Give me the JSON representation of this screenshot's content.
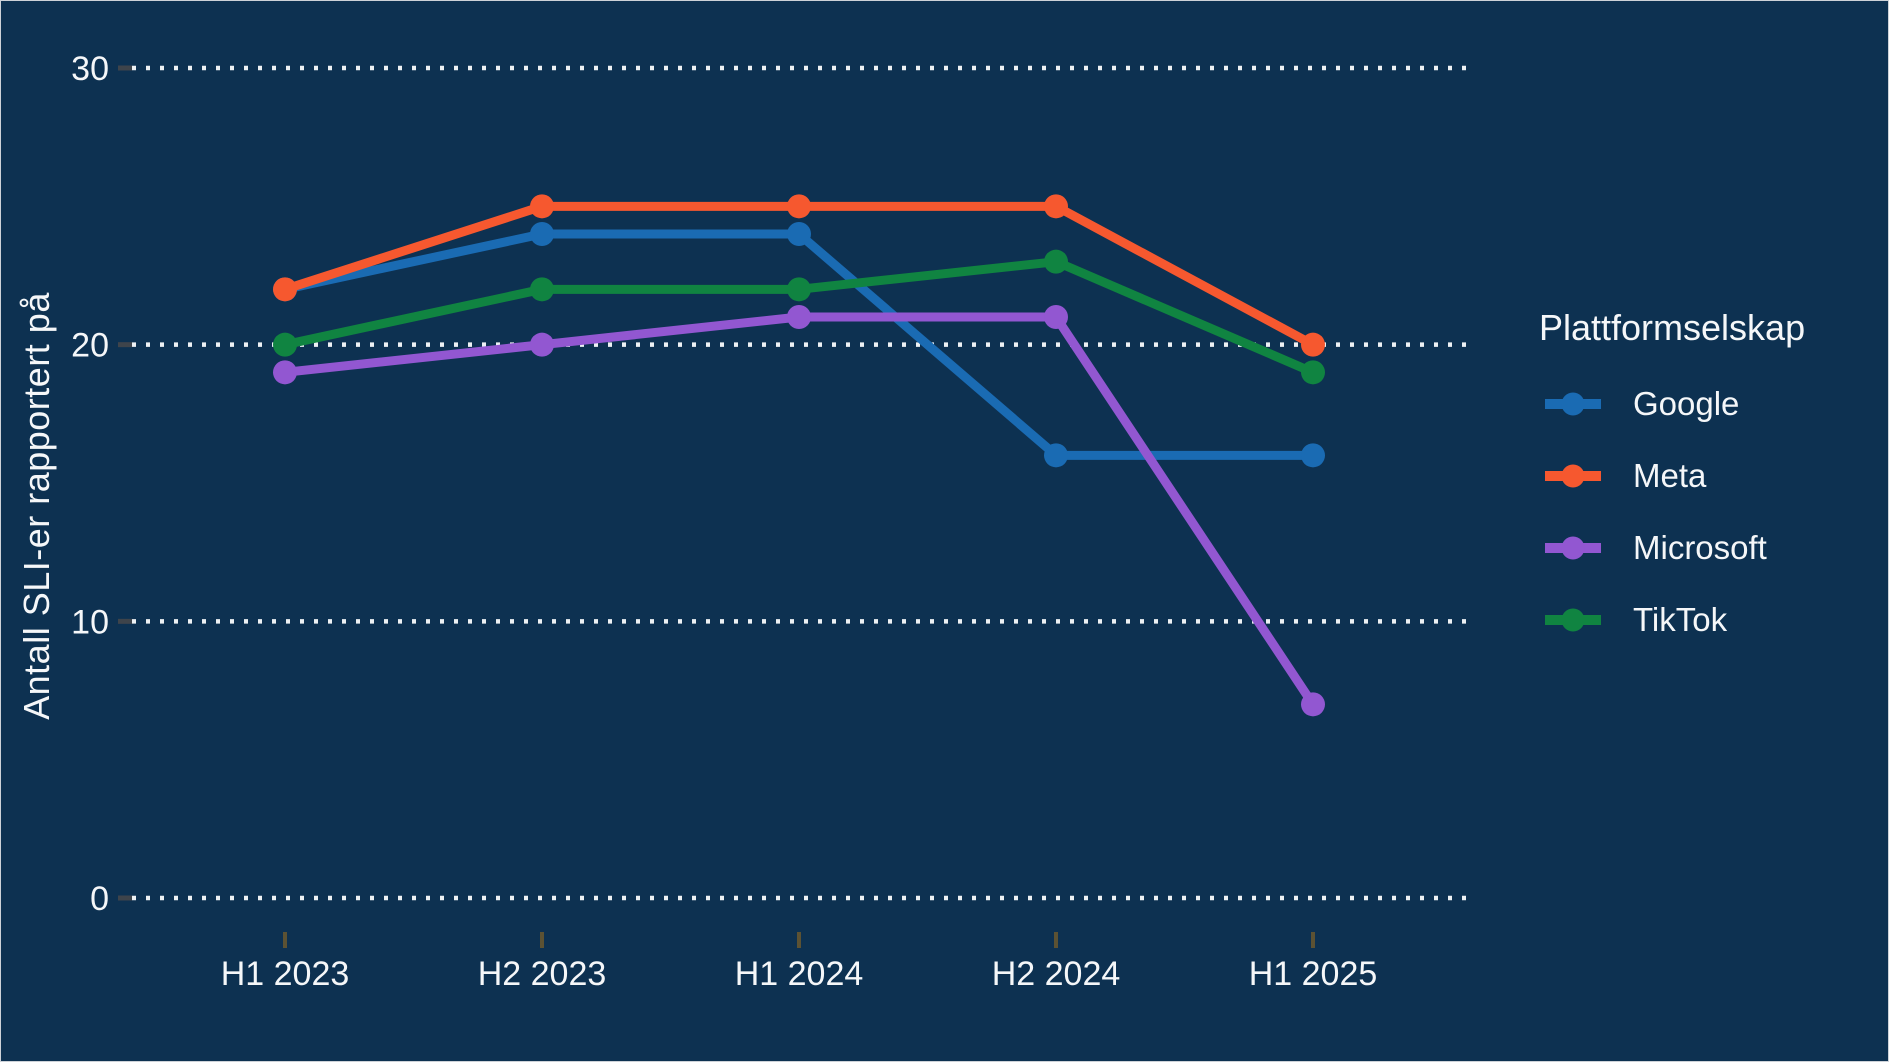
{
  "chart_data": {
    "type": "line",
    "title": "",
    "xlabel": "",
    "ylabel": "Antall SLI-er rapportert på",
    "categories": [
      "H1 2023",
      "H2 2023",
      "H1 2024",
      "H2 2024",
      "H1 2025"
    ],
    "series": [
      {
        "name": "Google",
        "color": "#1A6BB3",
        "values": [
          22,
          24,
          24,
          16,
          16
        ]
      },
      {
        "name": "Meta",
        "color": "#F6582F",
        "values": [
          22,
          25,
          25,
          25,
          20
        ]
      },
      {
        "name": "Microsoft",
        "color": "#9257D1",
        "values": [
          19,
          20,
          21,
          21,
          7
        ]
      },
      {
        "name": "TikTok",
        "color": "#108441",
        "values": [
          20,
          22,
          22,
          23,
          19
        ]
      }
    ],
    "ylim": [
      0,
      30
    ],
    "yticks": [
      0,
      10,
      20,
      30
    ],
    "grid": "horizontal-dotted",
    "gridline_color": "#EDF1F4",
    "y_tick_mark_color": "#3E444B",
    "x_tick_mark_color": "#5C5233",
    "legend": {
      "title": "Plattformselskap",
      "position": "right"
    },
    "background_color": "#0D3151",
    "text_color": "#F5F7F9"
  }
}
